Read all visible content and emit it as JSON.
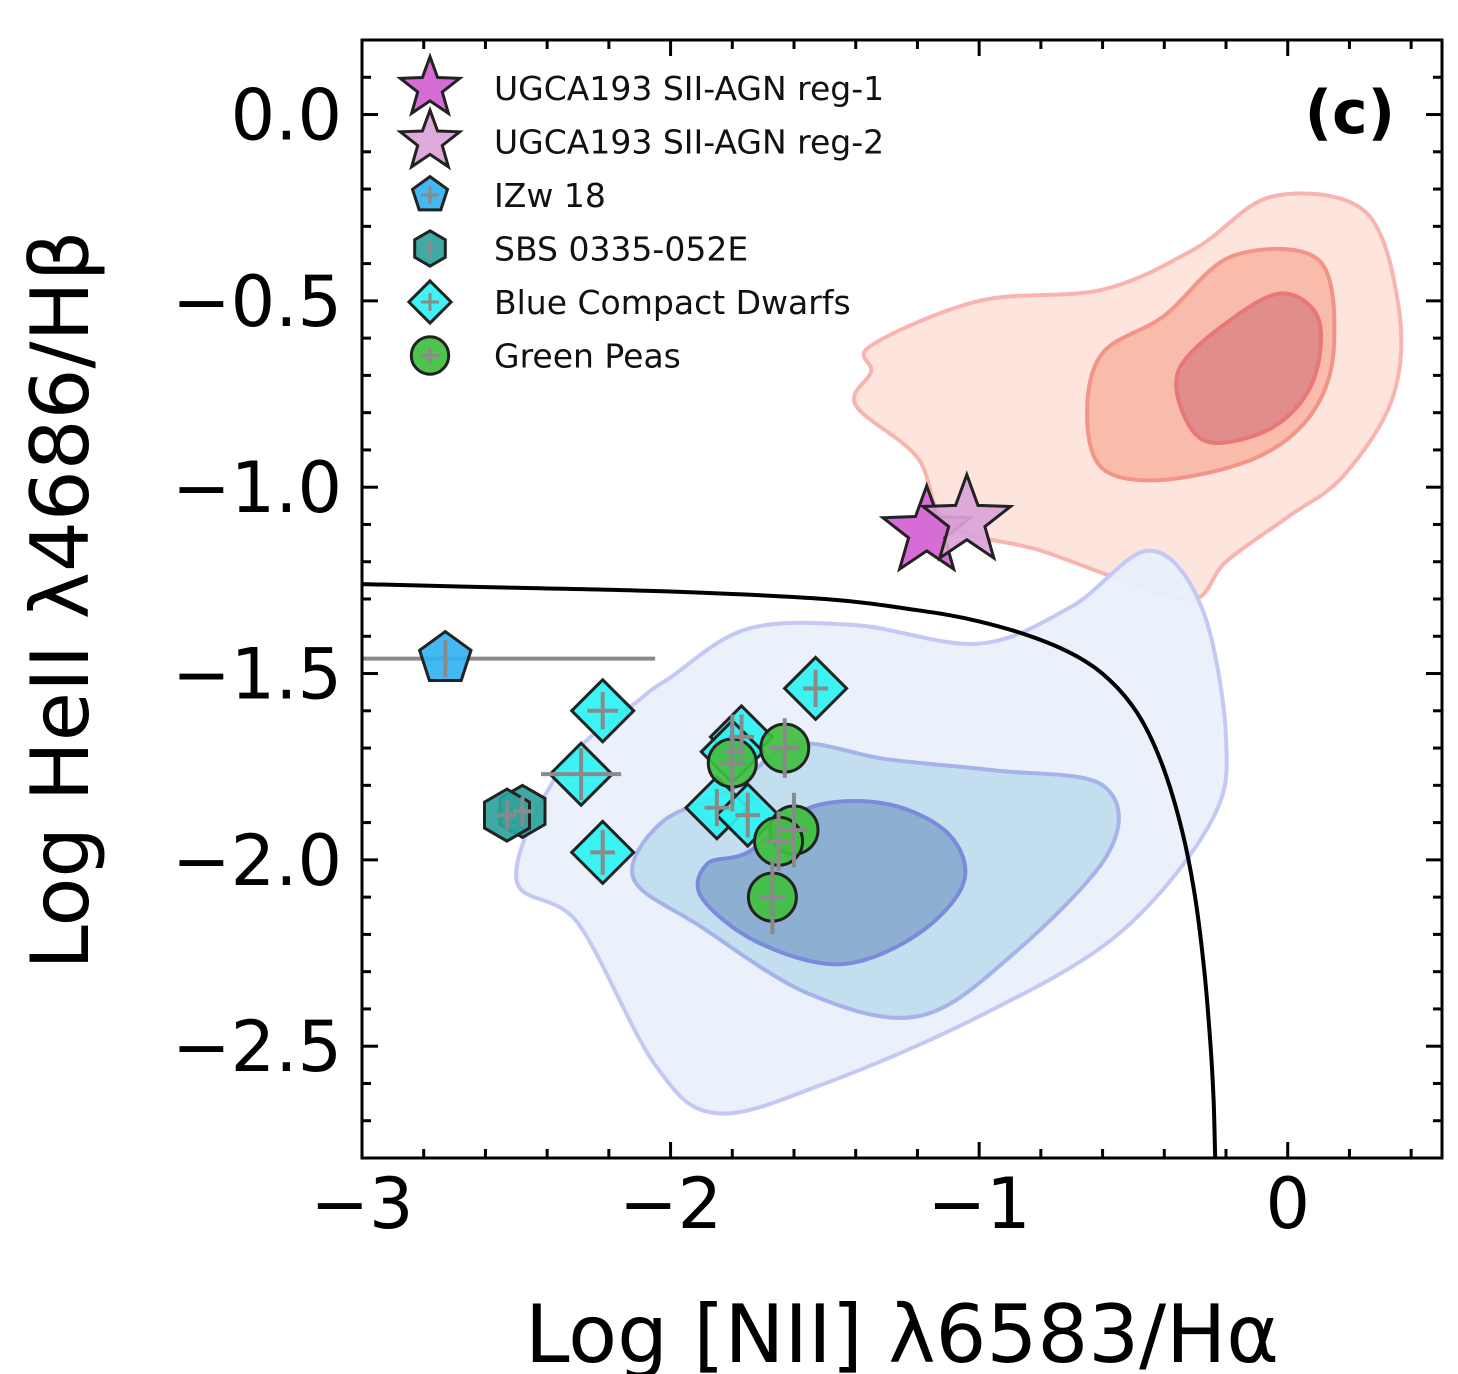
{
  "chart_data": {
    "type": "scatter",
    "panel_label": "(c)",
    "xlabel": "Log [NII] λ6583/Hα",
    "ylabel": "Log HeII λ4686/Hβ",
    "xlim": [
      -3.0,
      0.5
    ],
    "ylim": [
      -2.8,
      0.2
    ],
    "xticks": [
      -3,
      -2,
      -1,
      0
    ],
    "xtick_labels": [
      "−3",
      "−2",
      "−1",
      "0"
    ],
    "yticks": [
      0.0,
      -0.5,
      -1.0,
      -1.5,
      -2.0,
      -2.5
    ],
    "ytick_labels": [
      "0.0",
      "−0.5",
      "−1.0",
      "−1.5",
      "−2.0",
      "−2.5"
    ],
    "grid": false,
    "legend_position": "top-left",
    "series": [
      {
        "name": "UGCA193 SII-AGN reg-1",
        "marker": "star",
        "color": "#d35fd3",
        "points": [
          {
            "x": -1.17,
            "y": -1.12
          }
        ]
      },
      {
        "name": "UGCA193 SII-AGN reg-2",
        "marker": "star",
        "color": "#dba3d8",
        "points": [
          {
            "x": -1.04,
            "y": -1.09
          }
        ]
      },
      {
        "name": "IZw 18",
        "marker": "pentagon",
        "color": "#33b2f2",
        "points": [
          {
            "x": -2.73,
            "y": -1.46,
            "xerr_low": 0.27,
            "xerr_high": 0.68,
            "yerr": 0.05
          }
        ]
      },
      {
        "name": "SBS 0335-052E",
        "marker": "hexagon",
        "color": "#2ea39c",
        "points": [
          {
            "x": -2.48,
            "y": -1.87,
            "xerr": 0.03,
            "yerr": 0.04
          },
          {
            "x": -2.53,
            "y": -1.88,
            "xerr": 0.03,
            "yerr": 0.04
          }
        ]
      },
      {
        "name": "Blue Compact Dwarfs",
        "marker": "diamond",
        "color": "#2ef2f2",
        "points": [
          {
            "x": -2.22,
            "y": -1.6,
            "xerr": 0.05,
            "yerr": 0.05
          },
          {
            "x": -2.29,
            "y": -1.77,
            "xerr": 0.13,
            "yerr": 0.07
          },
          {
            "x": -2.22,
            "y": -1.98,
            "xerr": 0.04,
            "yerr": 0.06
          },
          {
            "x": -1.53,
            "y": -1.54,
            "xerr": 0.04,
            "yerr": 0.05
          },
          {
            "x": -1.77,
            "y": -1.67,
            "xerr": 0.04,
            "yerr": 0.06
          },
          {
            "x": -1.85,
            "y": -1.86,
            "xerr": 0.04,
            "yerr": 0.05
          },
          {
            "x": -1.75,
            "y": -1.88,
            "xerr": 0.04,
            "yerr": 0.06
          },
          {
            "x": -1.8,
            "y": -1.71,
            "xerr": 0.03,
            "yerr": 0.06
          }
        ]
      },
      {
        "name": "Green Peas",
        "marker": "circle",
        "color": "#3fbf3f",
        "points": [
          {
            "x": -1.8,
            "y": -1.74,
            "xerr": 0.04,
            "yerr": 0.13
          },
          {
            "x": -1.63,
            "y": -1.7,
            "xerr": 0.05,
            "yerr": 0.08
          },
          {
            "x": -1.6,
            "y": -1.92,
            "xerr": 0.04,
            "yerr": 0.1
          },
          {
            "x": -1.65,
            "y": -1.95,
            "xerr": 0.04,
            "yerr": 0.08
          },
          {
            "x": -1.67,
            "y": -2.1,
            "xerr": 0.04,
            "yerr": 0.1
          }
        ]
      }
    ],
    "demarcation_curve": {
      "color": "#000000",
      "points": [
        [
          -3.0,
          -1.26
        ],
        [
          -2.5,
          -1.27
        ],
        [
          -2.0,
          -1.28
        ],
        [
          -1.5,
          -1.3
        ],
        [
          -1.2,
          -1.33
        ],
        [
          -1.0,
          -1.36
        ],
        [
          -0.8,
          -1.41
        ],
        [
          -0.65,
          -1.47
        ],
        [
          -0.55,
          -1.54
        ],
        [
          -0.47,
          -1.63
        ],
        [
          -0.4,
          -1.76
        ],
        [
          -0.34,
          -1.93
        ],
        [
          -0.3,
          -2.1
        ],
        [
          -0.27,
          -2.3
        ],
        [
          -0.25,
          -2.5
        ],
        [
          -0.24,
          -2.65
        ],
        [
          -0.235,
          -2.8
        ]
      ]
    },
    "contours": [
      {
        "group": "agn",
        "level": 1,
        "fill": "#fde4dc",
        "stroke": "#f8b4b0",
        "points": [
          [
            -1.35,
            -0.62
          ],
          [
            -1.0,
            -0.5
          ],
          [
            -0.6,
            -0.47
          ],
          [
            -0.3,
            -0.36
          ],
          [
            -0.05,
            -0.22
          ],
          [
            0.25,
            -0.26
          ],
          [
            0.36,
            -0.52
          ],
          [
            0.34,
            -0.76
          ],
          [
            0.18,
            -0.97
          ],
          [
            0.0,
            -1.08
          ],
          [
            -0.2,
            -1.2
          ],
          [
            -0.3,
            -1.3
          ],
          [
            -0.5,
            -1.26
          ],
          [
            -0.8,
            -1.17
          ],
          [
            -1.1,
            -1.1
          ],
          [
            -1.2,
            -0.92
          ],
          [
            -1.4,
            -0.78
          ],
          [
            -1.35,
            -0.69
          ]
        ]
      },
      {
        "group": "agn",
        "level": 2,
        "fill": "#f9b9a6",
        "stroke": "#f29488",
        "points": [
          [
            -0.6,
            -0.64
          ],
          [
            -0.4,
            -0.54
          ],
          [
            -0.18,
            -0.38
          ],
          [
            0.1,
            -0.39
          ],
          [
            0.15,
            -0.62
          ],
          [
            0.08,
            -0.8
          ],
          [
            -0.1,
            -0.92
          ],
          [
            -0.4,
            -0.98
          ],
          [
            -0.6,
            -0.95
          ],
          [
            -0.65,
            -0.8
          ]
        ]
      },
      {
        "group": "agn",
        "level": 3,
        "fill": "#de8a8a",
        "stroke": "#e87777",
        "points": [
          [
            -0.35,
            -0.68
          ],
          [
            -0.2,
            -0.56
          ],
          [
            -0.02,
            -0.48
          ],
          [
            0.1,
            -0.55
          ],
          [
            0.08,
            -0.72
          ],
          [
            -0.05,
            -0.84
          ],
          [
            -0.25,
            -0.88
          ],
          [
            -0.34,
            -0.8
          ]
        ]
      },
      {
        "group": "sf",
        "level": 1,
        "fill": "#e9f0fa",
        "stroke": "#c3c8f4",
        "points": [
          [
            -2.0,
            -1.51
          ],
          [
            -1.75,
            -1.38
          ],
          [
            -1.4,
            -1.37
          ],
          [
            -1.0,
            -1.42
          ],
          [
            -0.7,
            -1.32
          ],
          [
            -0.45,
            -1.17
          ],
          [
            -0.28,
            -1.32
          ],
          [
            -0.2,
            -1.67
          ],
          [
            -0.25,
            -1.9
          ],
          [
            -0.55,
            -2.2
          ],
          [
            -1.0,
            -2.42
          ],
          [
            -1.5,
            -2.6
          ],
          [
            -1.85,
            -2.68
          ],
          [
            -2.05,
            -2.55
          ],
          [
            -2.3,
            -2.17
          ],
          [
            -2.5,
            -2.05
          ],
          [
            -2.35,
            -1.75
          ],
          [
            -2.1,
            -1.57
          ]
        ]
      },
      {
        "group": "sf",
        "level": 2,
        "fill": "#c0dcee",
        "stroke": "#a6b3ea",
        "points": [
          [
            -1.8,
            -1.81
          ],
          [
            -1.6,
            -1.69
          ],
          [
            -1.3,
            -1.73
          ],
          [
            -0.95,
            -1.76
          ],
          [
            -0.6,
            -1.8
          ],
          [
            -0.58,
            -1.98
          ],
          [
            -0.9,
            -2.26
          ],
          [
            -1.2,
            -2.42
          ],
          [
            -1.55,
            -2.36
          ],
          [
            -1.9,
            -2.18
          ],
          [
            -2.12,
            -2.05
          ],
          [
            -2.03,
            -1.9
          ]
        ]
      },
      {
        "group": "sf",
        "level": 3,
        "fill": "#8aacd0",
        "stroke": "#7a8bdc",
        "points": [
          [
            -1.75,
            -1.98
          ],
          [
            -1.55,
            -1.86
          ],
          [
            -1.3,
            -1.85
          ],
          [
            -1.1,
            -1.93
          ],
          [
            -1.05,
            -2.06
          ],
          [
            -1.2,
            -2.2
          ],
          [
            -1.45,
            -2.28
          ],
          [
            -1.72,
            -2.22
          ],
          [
            -1.9,
            -2.1
          ],
          [
            -1.88,
            -2.01
          ]
        ]
      }
    ]
  }
}
